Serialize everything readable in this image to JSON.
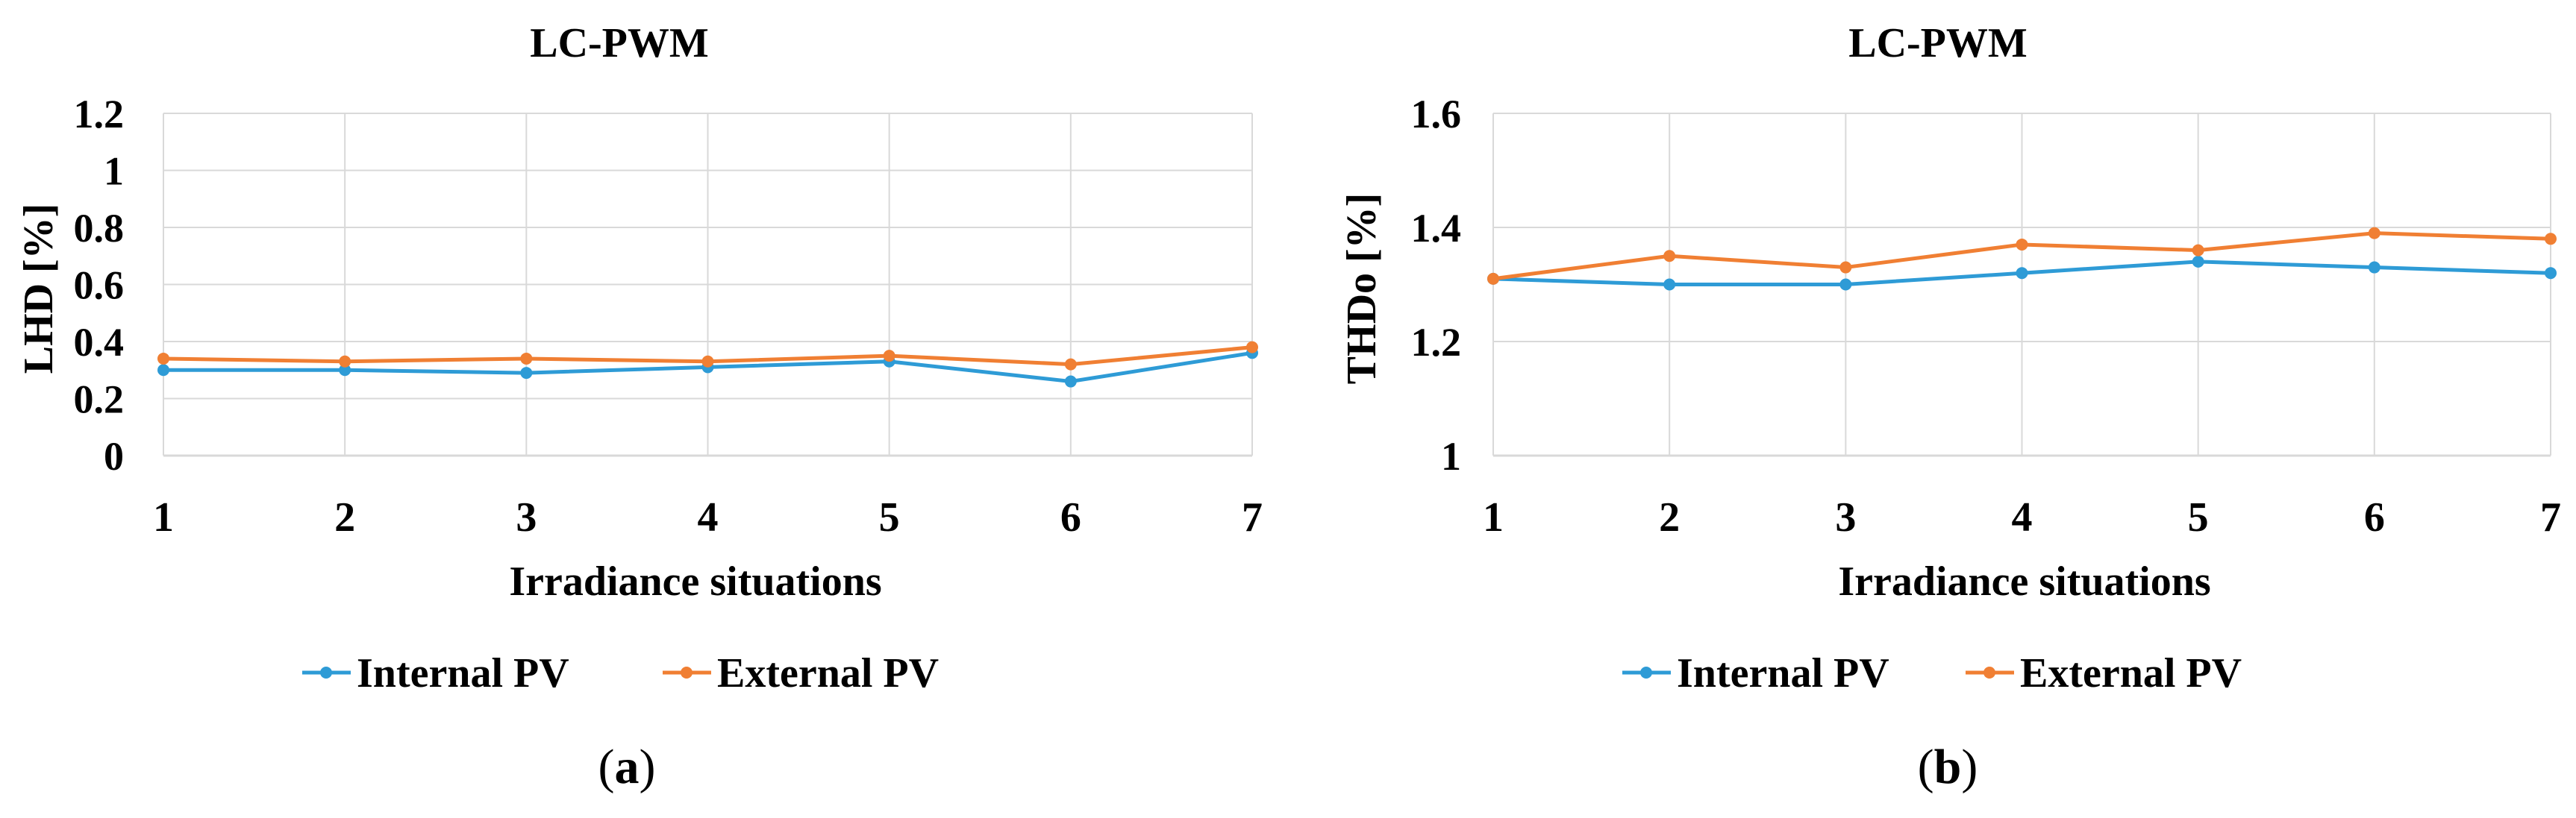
{
  "chart_data": [
    {
      "type": "line",
      "panel_label": "a",
      "title": "LC-PWM",
      "xlabel": "Irradiance situations",
      "ylabel": "LHD [%]",
      "categories": [
        "1",
        "2",
        "3",
        "4",
        "5",
        "6",
        "7"
      ],
      "y_ticks": [
        "0",
        "0.2",
        "0.4",
        "0.6",
        "0.8",
        "1",
        "1.2"
      ],
      "ylim": [
        0,
        1.2
      ],
      "grid": true,
      "legend_position": "bottom",
      "series": [
        {
          "name": "Internal PV",
          "color": "#2e9bd6",
          "values": [
            0.3,
            0.3,
            0.29,
            0.31,
            0.33,
            0.26,
            0.36
          ]
        },
        {
          "name": "External PV",
          "color": "#f07f33",
          "values": [
            0.34,
            0.33,
            0.34,
            0.33,
            0.35,
            0.32,
            0.38
          ]
        }
      ]
    },
    {
      "type": "line",
      "panel_label": "b",
      "title": "LC-PWM",
      "xlabel": "Irradiance situations",
      "ylabel": "THDo [%]",
      "categories": [
        "1",
        "2",
        "3",
        "4",
        "5",
        "6",
        "7"
      ],
      "y_ticks": [
        "1",
        "1.2",
        "1.4",
        "1.6"
      ],
      "ylim": [
        1,
        1.6
      ],
      "grid": true,
      "legend_position": "bottom",
      "series": [
        {
          "name": "Internal PV",
          "color": "#2e9bd6",
          "values": [
            1.31,
            1.3,
            1.3,
            1.32,
            1.34,
            1.33,
            1.32
          ]
        },
        {
          "name": "External PV",
          "color": "#f07f33",
          "values": [
            1.31,
            1.35,
            1.33,
            1.37,
            1.36,
            1.39,
            1.38
          ]
        }
      ]
    }
  ]
}
